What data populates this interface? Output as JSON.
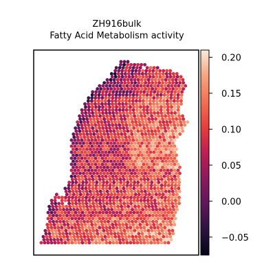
{
  "chart_data": {
    "type": "heatmap",
    "title": [
      "ZH916bulk",
      "Fatty Acid Metabolism activity"
    ],
    "xlabel": "",
    "ylabel": "",
    "colorbar": {
      "colormap": "rocket",
      "range": [
        -0.075,
        0.21
      ],
      "ticks": [
        -0.05,
        0.0,
        0.05,
        0.1,
        0.15,
        0.2
      ],
      "tick_labels": [
        "−0.05",
        "0.00",
        "0.05",
        "0.10",
        "0.15",
        "0.20"
      ]
    },
    "axes_ticks_shown": false,
    "description_of_distribution": "Hexagonal spatial spots forming tissue outline; lower-right and lower-middle regions show higher activity (~0.10-0.17), upper-left edge lower (~-0.05-0.05).",
    "regions": [
      {
        "name": "upper-left-edge",
        "typical_value": 0.01
      },
      {
        "name": "central-body",
        "typical_value": 0.08
      },
      {
        "name": "right-middle",
        "typical_value": 0.12
      },
      {
        "name": "bottom-strip",
        "typical_value": 0.13
      }
    ]
  }
}
